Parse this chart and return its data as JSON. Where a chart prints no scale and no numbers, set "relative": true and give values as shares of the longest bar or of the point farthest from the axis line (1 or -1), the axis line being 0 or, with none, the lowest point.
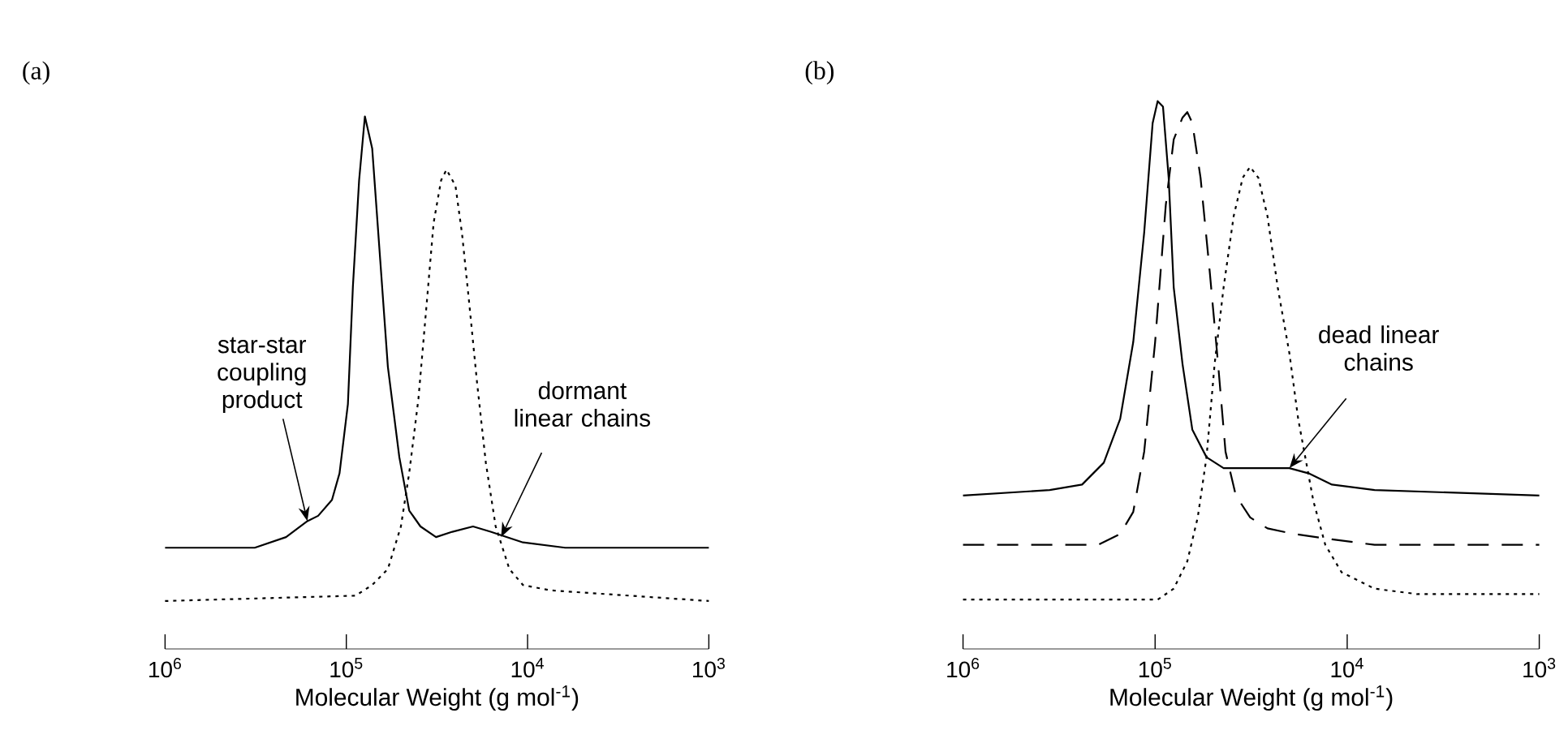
{
  "chart_data": [
    {
      "type": "line",
      "title": "(a)",
      "xlabel": "Molecular Weight (g mol$^{-1}$)",
      "log": "x",
      "relative": true,
      "xlim": [
        1000000,
        1000
      ],
      "xticks": [
        {
          "value": 1000000,
          "label": "10$^{6}$"
        },
        {
          "value": 100000,
          "label": "10$^{5}$"
        },
        {
          "value": 10000,
          "label": "10$^{4}$"
        },
        {
          "value": 1000,
          "label": "10$^{3}$"
        }
      ],
      "series": [
        {
          "color": "#000000",
          "line_style": "solid",
          "x": [
            1000000,
            320000,
            215000,
            164000,
            143000,
            120000,
            109000,
            98000,
            92000,
            85000,
            79000,
            72000,
            65000,
            59000,
            51000,
            45000,
            39000,
            32000,
            26000,
            20000,
            16000,
            10600,
            6200,
            1000
          ],
          "values": [
            0.19,
            0.19,
            0.21,
            0.24,
            0.25,
            0.28,
            0.33,
            0.46,
            0.68,
            0.88,
            1.0,
            0.94,
            0.73,
            0.53,
            0.36,
            0.26,
            0.23,
            0.21,
            0.22,
            0.23,
            0.22,
            0.2,
            0.19,
            0.19
          ]
        },
        {
          "color": "#000000",
          "line_style": "dotted",
          "x": [
            1000000,
            89000,
            72000,
            59000,
            50000,
            45000,
            40000,
            36000,
            33000,
            30000,
            28000,
            25000,
            23000,
            21000,
            19000,
            17000,
            15000,
            12600,
            10600,
            7500,
            1000
          ],
          "values": [
            0.09,
            0.1,
            0.12,
            0.15,
            0.23,
            0.33,
            0.47,
            0.65,
            0.8,
            0.88,
            0.9,
            0.87,
            0.78,
            0.65,
            0.5,
            0.35,
            0.23,
            0.15,
            0.12,
            0.11,
            0.09
          ]
        }
      ],
      "annotations": [
        {
          "text": "star-star coupling product",
          "x": 164000,
          "y": 0.24
        },
        {
          "text": "dormant linear chains",
          "x": 14000,
          "y": 0.21
        }
      ]
    },
    {
      "type": "line",
      "title": "(b)",
      "xlabel": "Molecular Weight (g mol$^{-1}$)",
      "log": "x",
      "relative": true,
      "xlim": [
        1000000,
        1000
      ],
      "xticks": [
        {
          "value": 1000000,
          "label": "10$^{6}$"
        },
        {
          "value": 100000,
          "label": "10$^{5}$"
        },
        {
          "value": 10000,
          "label": "10$^{4}$"
        },
        {
          "value": 1000,
          "label": "10$^{3}$"
        }
      ],
      "series": [
        {
          "color": "#000000",
          "line_style": "solid",
          "x": [
            1000000,
            354000,
            240000,
            185000,
            152000,
            130000,
            114000,
            103000,
            97000,
            91000,
            85000,
            80000,
            72000,
            64000,
            54000,
            44000,
            34000,
            26000,
            20000,
            15700,
            12000,
            7200,
            1000
          ],
          "values": [
            0.28,
            0.29,
            0.3,
            0.34,
            0.42,
            0.56,
            0.76,
            0.96,
            1.0,
            0.99,
            0.86,
            0.66,
            0.52,
            0.4,
            0.35,
            0.33,
            0.33,
            0.33,
            0.33,
            0.32,
            0.3,
            0.29,
            0.28
          ]
        },
        {
          "color": "#000000",
          "line_style": "dashed",
          "x": [
            1000000,
            198000,
            152000,
            130000,
            114000,
            100000,
            88000,
            80000,
            72000,
            68000,
            64000,
            58000,
            52000,
            47000,
            43000,
            38000,
            32000,
            26000,
            19000,
            12000,
            7200,
            1000
          ],
          "values": [
            0.19,
            0.19,
            0.21,
            0.25,
            0.36,
            0.56,
            0.81,
            0.93,
            0.97,
            0.98,
            0.96,
            0.86,
            0.69,
            0.52,
            0.36,
            0.28,
            0.24,
            0.22,
            0.21,
            0.2,
            0.19,
            0.19
          ]
        },
        {
          "color": "#000000",
          "line_style": "dotted",
          "x": [
            1000000,
            97000,
            80000,
            68000,
            60000,
            54000,
            49000,
            44000,
            39000,
            35000,
            32000,
            29000,
            26000,
            23000,
            20000,
            18000,
            15000,
            13000,
            10700,
            7200,
            4300,
            1000
          ],
          "values": [
            0.09,
            0.09,
            0.11,
            0.16,
            0.24,
            0.35,
            0.52,
            0.66,
            0.79,
            0.86,
            0.88,
            0.86,
            0.79,
            0.66,
            0.54,
            0.42,
            0.27,
            0.19,
            0.14,
            0.11,
            0.1,
            0.1
          ]
        }
      ],
      "annotations": [
        {
          "text": "dead linear chains",
          "x": 20000,
          "y": 0.33
        }
      ]
    }
  ]
}
